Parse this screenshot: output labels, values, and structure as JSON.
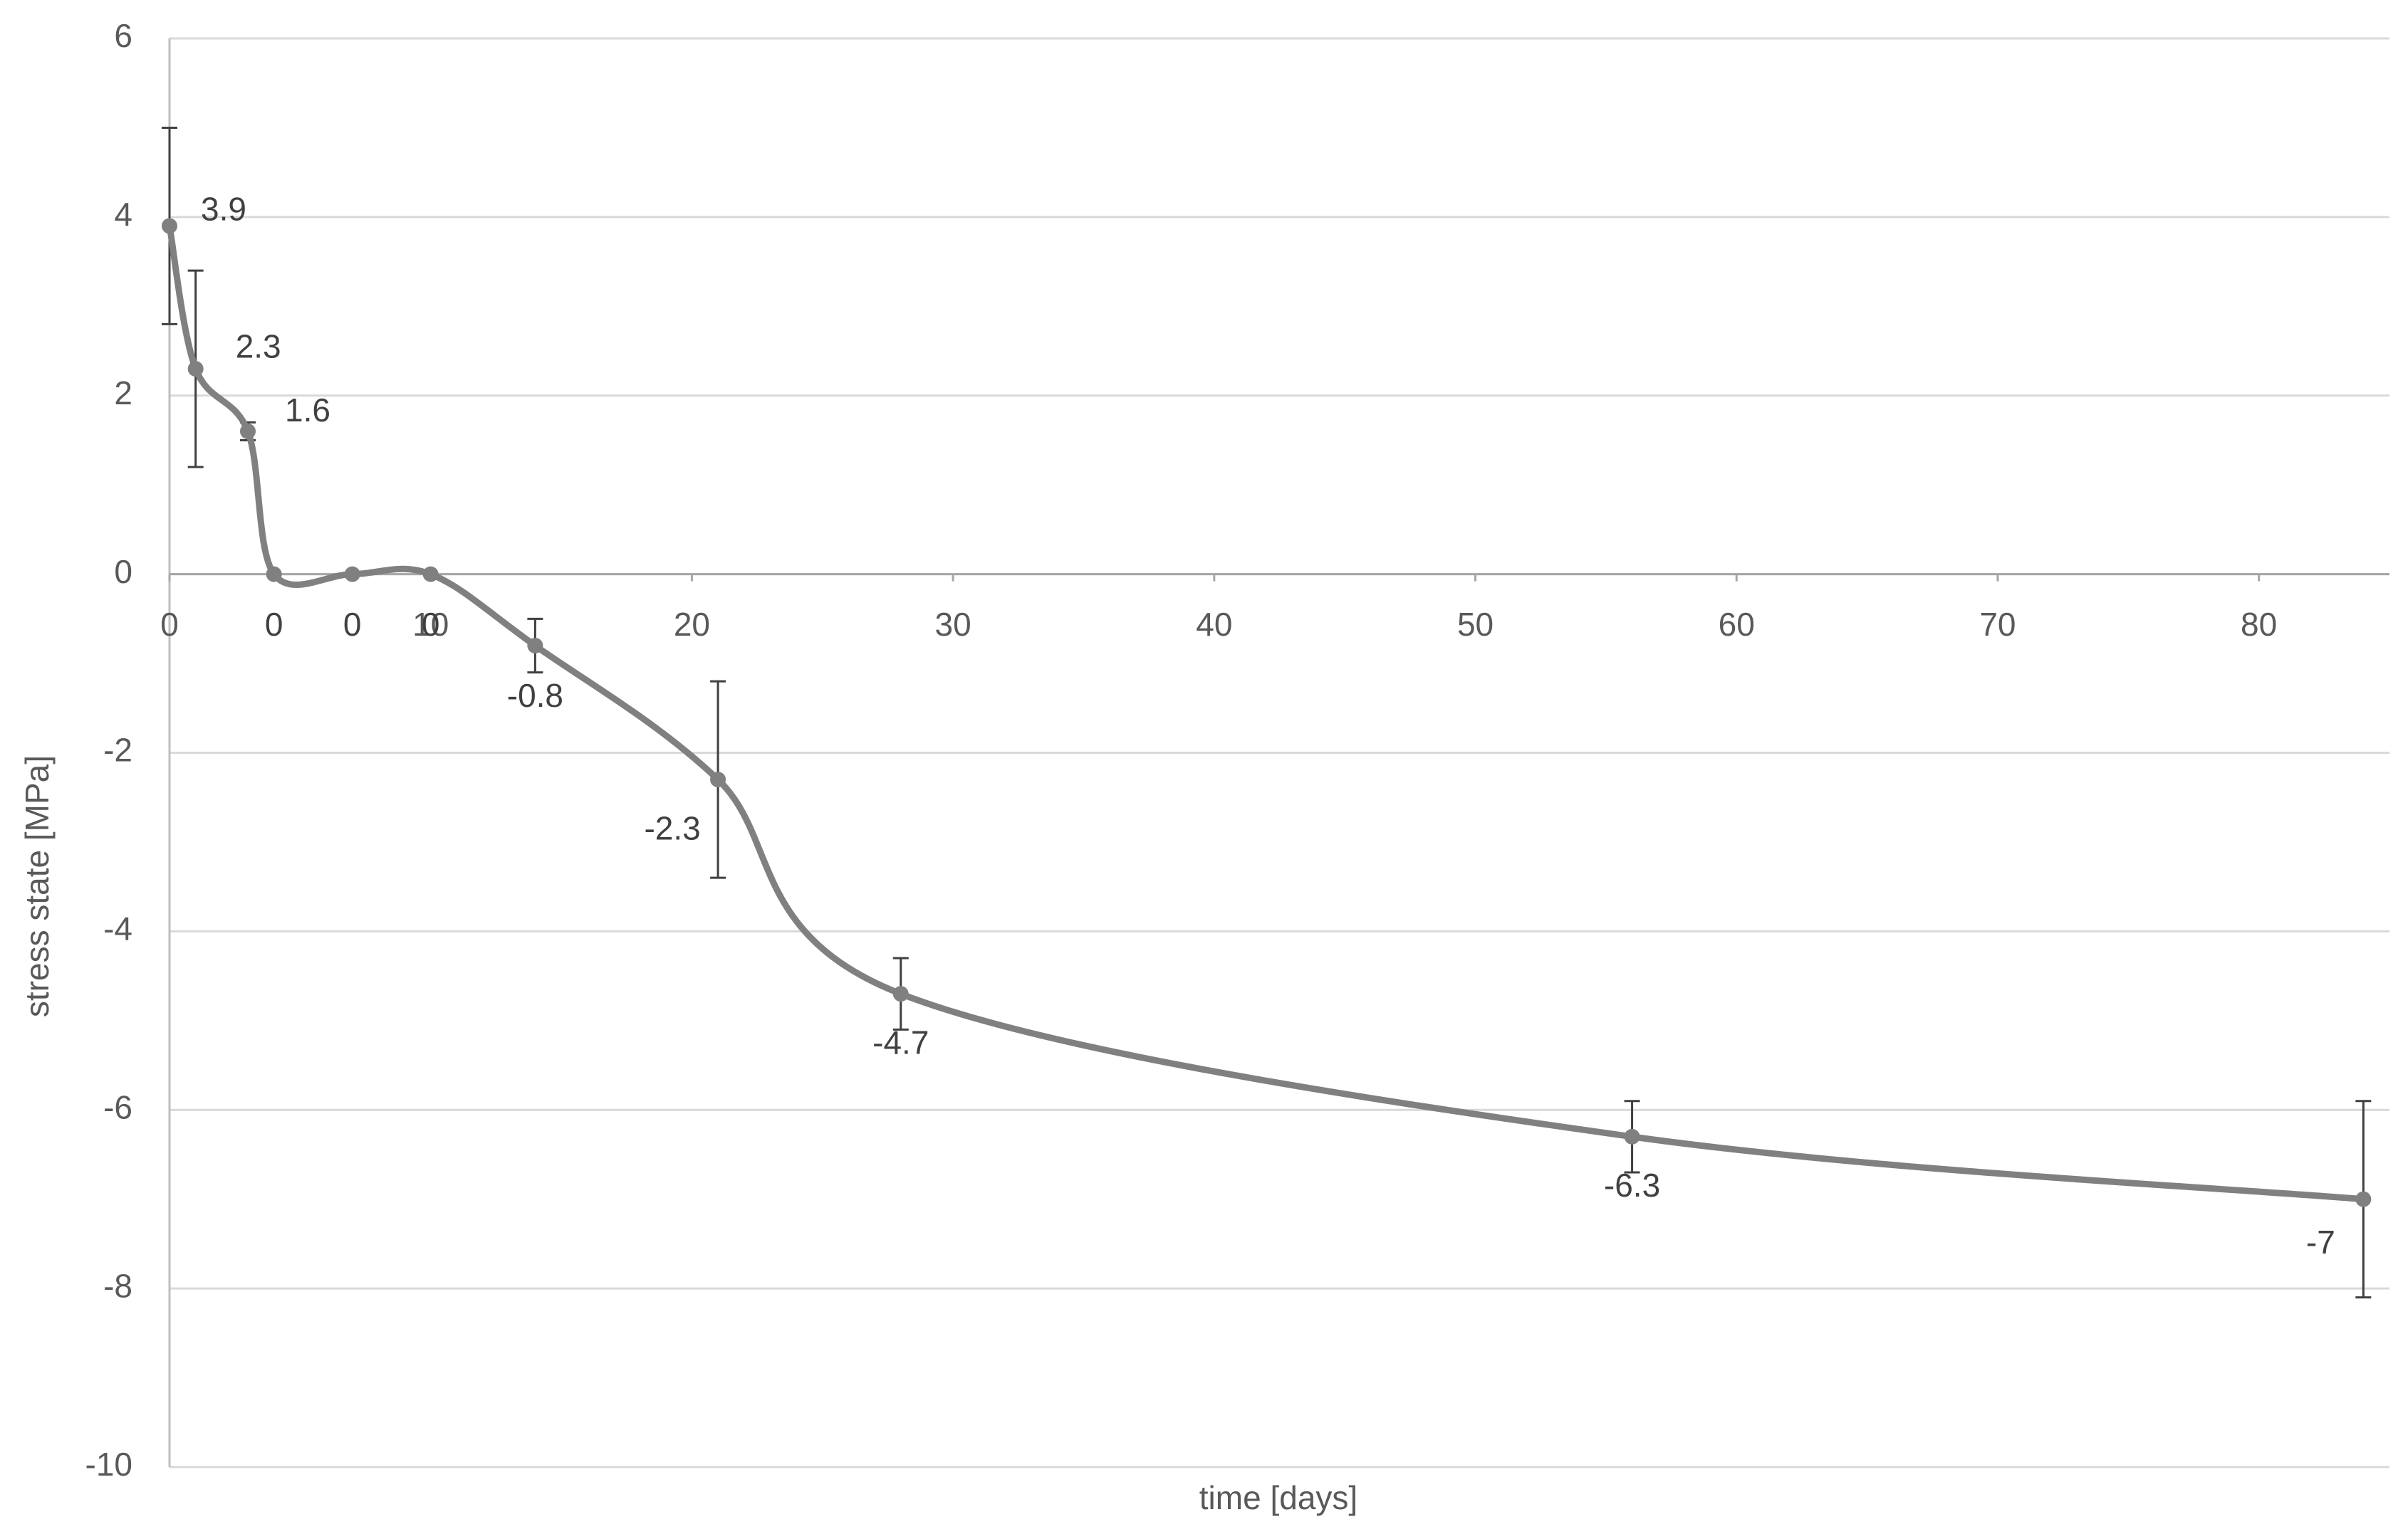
{
  "chart_data": {
    "type": "line",
    "x_label": "time [days]",
    "y_label": "stress state [MPa]",
    "x": [
      0,
      1,
      3,
      4,
      7,
      10,
      14,
      21,
      28,
      56,
      84
    ],
    "series": [
      {
        "name": "stress state",
        "color": "#808080",
        "values": [
          3.9,
          2.3,
          1.6,
          0,
          0,
          0,
          -0.8,
          -2.3,
          -4.7,
          -6.3,
          -7
        ],
        "errors": [
          1.1,
          1.1,
          0.1,
          null,
          null,
          null,
          0.3,
          1.1,
          0.4,
          0.4,
          1.1
        ]
      }
    ],
    "error_color": "#404040",
    "xlim": [
      0,
      85
    ],
    "xticks": [
      0,
      10,
      20,
      30,
      40,
      50,
      60,
      70,
      80
    ],
    "ylim": [
      -10,
      6
    ],
    "yticks": [
      -10,
      -8,
      -6,
      -4,
      -2,
      0,
      2,
      4,
      6
    ],
    "grid": true,
    "smooth": true
  }
}
